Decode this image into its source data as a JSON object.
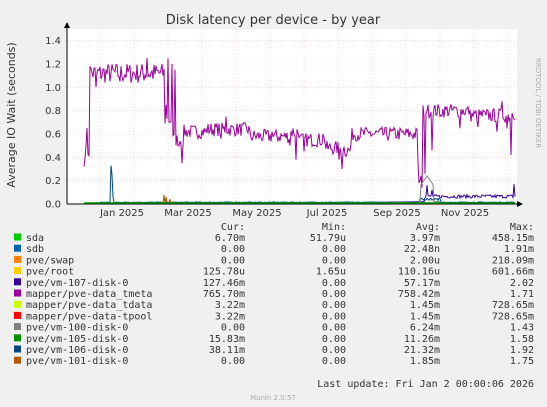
{
  "chart_data": {
    "type": "line",
    "title": "Disk latency per device - by year",
    "ylabel": "Average IO Wait (seconds)",
    "side_label": "RRDTOOL / TOBI OETIKER",
    "ylim": [
      0,
      1.5
    ],
    "yticks": [
      "0.0",
      "0.2",
      "0.4",
      "0.6",
      "0.8",
      "1.0",
      "1.2",
      "1.4"
    ],
    "xticks": [
      "Jan 2025",
      "Mar 2025",
      "May 2025",
      "Jul 2025",
      "Sep 2025",
      "Nov 2025"
    ],
    "grid": true,
    "legend_placement": "bottom",
    "table_headers": [
      "Cur:",
      "Min:",
      "Avg:",
      "Max:"
    ],
    "series": [
      {
        "name": "sda",
        "color": "#00cc00",
        "cur": "6.70m",
        "min": "51.79u",
        "avg": "3.97m",
        "max": "458.15m"
      },
      {
        "name": "sdb",
        "color": "#0066b3",
        "cur": "0.00",
        "min": "0.00",
        "avg": "22.48n",
        "max": "1.91m"
      },
      {
        "name": "pve/swap",
        "color": "#ff8000",
        "cur": "0.00",
        "min": "0.00",
        "avg": "2.00u",
        "max": "218.09m"
      },
      {
        "name": "pve/root",
        "color": "#ffcc00",
        "cur": "125.78u",
        "min": "1.65u",
        "avg": "110.16u",
        "max": "601.66m"
      },
      {
        "name": "pve/vm-107-disk-0",
        "color": "#330099",
        "cur": "127.46m",
        "min": "0.00",
        "avg": "57.17m",
        "max": "2.02"
      },
      {
        "name": "mapper/pve-data_tmeta",
        "color": "#990099",
        "cur": "765.70m",
        "min": "0.00",
        "avg": "758.42m",
        "max": "1.71"
      },
      {
        "name": "mapper/pve-data_tdata",
        "color": "#ccff00",
        "cur": "3.22m",
        "min": "0.00",
        "avg": "1.45m",
        "max": "728.65m"
      },
      {
        "name": "mapper/pve-data-tpool",
        "color": "#ff0000",
        "cur": "3.22m",
        "min": "0.00",
        "avg": "1.45m",
        "max": "728.65m"
      },
      {
        "name": "pve/vm-100-disk-0",
        "color": "#808080",
        "cur": "0.00",
        "min": "0.00",
        "avg": "6.24m",
        "max": "1.43"
      },
      {
        "name": "pve/vm-105-disk-0",
        "color": "#008f00",
        "cur": "15.83m",
        "min": "0.00",
        "avg": "11.26m",
        "max": "1.58"
      },
      {
        "name": "pve/vm-106-disk-0",
        "color": "#00487d",
        "cur": "38.11m",
        "min": "0.00",
        "avg": "21.32m",
        "max": "1.92"
      },
      {
        "name": "pve/vm-101-disk-0",
        "color": "#b35a00",
        "cur": "0.00",
        "min": "0.00",
        "avg": "1.85m",
        "max": "1.75"
      }
    ],
    "footer": "Last update: Fri Jan  2 00:00:06 2026",
    "version": "Munin 2.0.57"
  }
}
